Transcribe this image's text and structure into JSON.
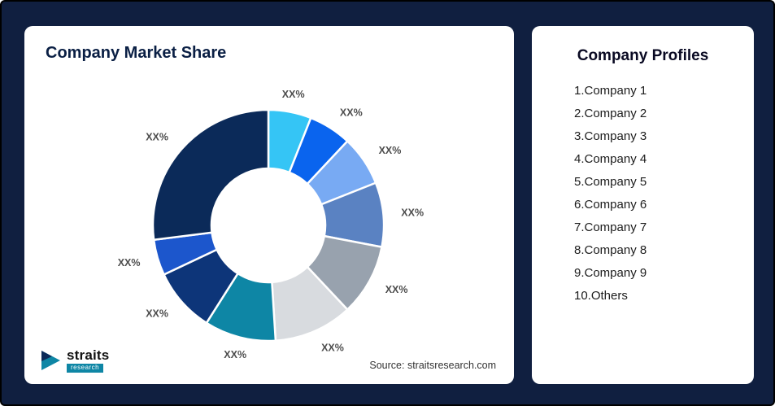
{
  "page": {
    "background_color": "#101f40"
  },
  "left_panel": {
    "title": "Company Market Share",
    "source": "Source: straitsresearch.com",
    "logo": {
      "name": "straits",
      "sub": "research"
    }
  },
  "right_panel": {
    "title": "Company Profiles",
    "items": [
      "1.Company 1",
      "2.Company 2",
      "3.Company 3",
      "4.Company 4",
      "5.Company 5",
      "6.Company 6",
      "7.Company 7",
      "8.Company 8",
      "9.Company 9",
      "10.Others"
    ]
  },
  "chart_data": {
    "type": "pie",
    "subtype": "donut",
    "title": "Company Market Share",
    "categories": [
      "Company 1",
      "Company 2",
      "Company 3",
      "Company 4",
      "Company 5",
      "Company 6",
      "Company 7",
      "Company 8",
      "Company 9",
      "Others"
    ],
    "values": [
      6,
      6,
      7,
      9,
      10,
      11,
      10,
      9,
      5,
      27
    ],
    "labels": [
      "XX%",
      "XX%",
      "XX%",
      "XX%",
      "XX%",
      "XX%",
      "XX%",
      "XX%",
      "XX%",
      "XX%"
    ],
    "colors": [
      "#35c5f5",
      "#0a64ee",
      "#78aaf3",
      "#5a82c2",
      "#98a2ae",
      "#d8dbdf",
      "#0e86a5",
      "#0d3579",
      "#1c56cc",
      "#0b2a59"
    ],
    "note": "Values displayed as XX% placeholders; numeric values estimated from arc sizes",
    "legend_position": "none",
    "start_angle_deg": 0,
    "direction": "clockwise"
  }
}
